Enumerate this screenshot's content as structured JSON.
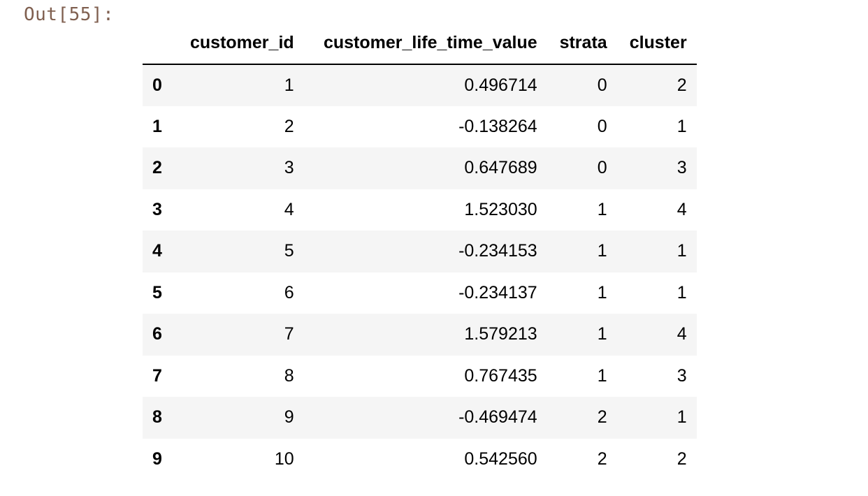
{
  "cell": {
    "output_prompt": "Out[55]:"
  },
  "dataframe": {
    "columns": [
      "customer_id",
      "customer_life_time_value",
      "strata",
      "cluster"
    ],
    "rows": [
      {
        "index": "0",
        "customer_id": "1",
        "customer_life_time_value": "0.496714",
        "strata": "0",
        "cluster": "2"
      },
      {
        "index": "1",
        "customer_id": "2",
        "customer_life_time_value": "-0.138264",
        "strata": "0",
        "cluster": "1"
      },
      {
        "index": "2",
        "customer_id": "3",
        "customer_life_time_value": "0.647689",
        "strata": "0",
        "cluster": "3"
      },
      {
        "index": "3",
        "customer_id": "4",
        "customer_life_time_value": "1.523030",
        "strata": "1",
        "cluster": "4"
      },
      {
        "index": "4",
        "customer_id": "5",
        "customer_life_time_value": "-0.234153",
        "strata": "1",
        "cluster": "1"
      },
      {
        "index": "5",
        "customer_id": "6",
        "customer_life_time_value": "-0.234137",
        "strata": "1",
        "cluster": "1"
      },
      {
        "index": "6",
        "customer_id": "7",
        "customer_life_time_value": "1.579213",
        "strata": "1",
        "cluster": "4"
      },
      {
        "index": "7",
        "customer_id": "8",
        "customer_life_time_value": "0.767435",
        "strata": "1",
        "cluster": "3"
      },
      {
        "index": "8",
        "customer_id": "9",
        "customer_life_time_value": "-0.469474",
        "strata": "2",
        "cluster": "1"
      },
      {
        "index": "9",
        "customer_id": "10",
        "customer_life_time_value": "0.542560",
        "strata": "2",
        "cluster": "2"
      }
    ]
  },
  "colors": {
    "prompt_text": "#7f5f4f",
    "striped_row": "#f5f5f5",
    "header_rule": "#000000"
  }
}
